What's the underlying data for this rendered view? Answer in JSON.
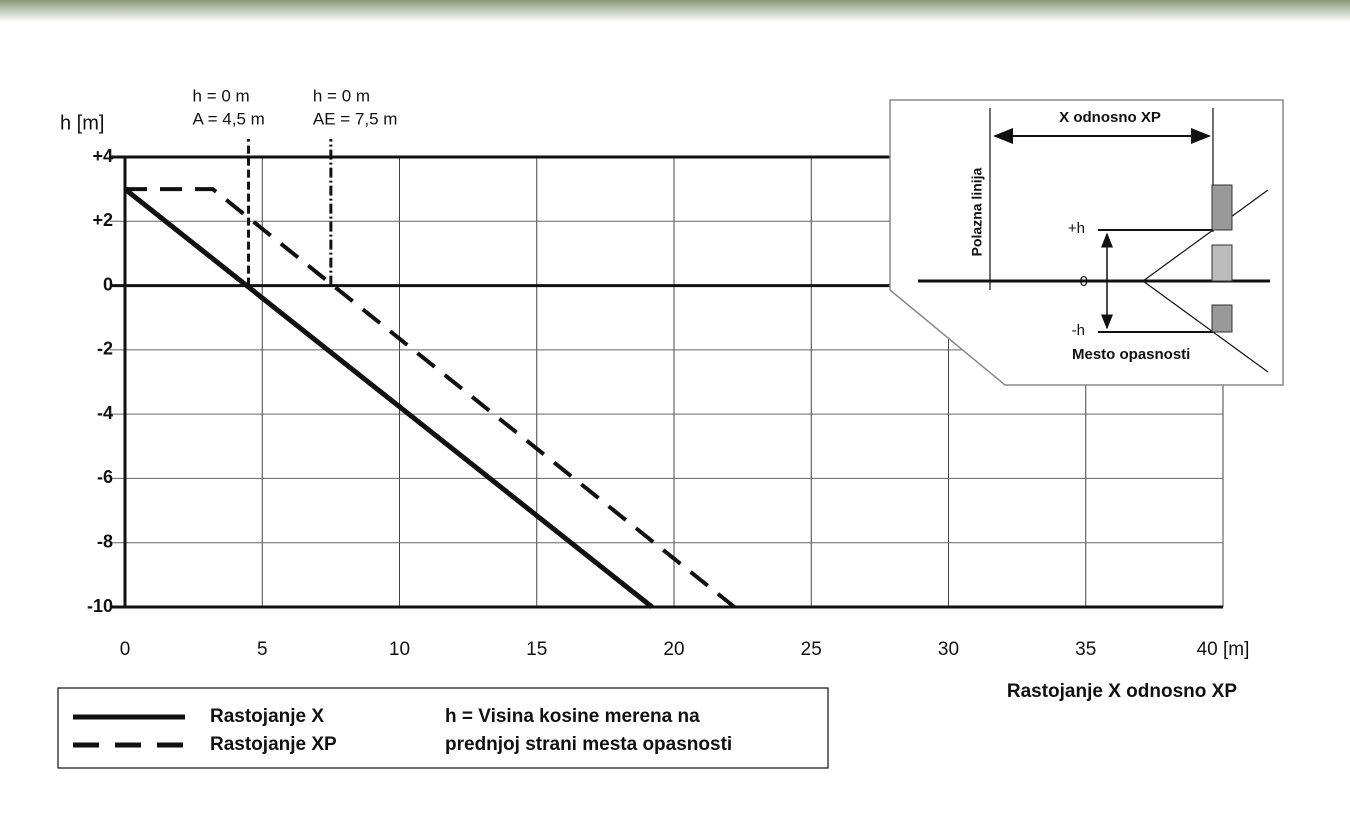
{
  "chart_data": {
    "type": "line",
    "y_label": "h [m]",
    "x_label": "Rastojanje X odnosno XP",
    "xlim": [
      0,
      40
    ],
    "ylim": [
      -10,
      4
    ],
    "xticks": [
      0,
      5,
      10,
      15,
      20,
      25,
      30,
      35,
      {
        "value": 40,
        "label": "40 [m]"
      }
    ],
    "yticks": [
      {
        "value": 4,
        "label": "+4"
      },
      {
        "value": 2,
        "label": "+2"
      },
      0,
      -2,
      -4,
      -6,
      -8,
      -10
    ],
    "grid": true,
    "series": [
      {
        "name": "Rastojanje X",
        "color": "#111111",
        "style": "solid",
        "x": [
          0,
          19.2
        ],
        "values": [
          3,
          -10
        ]
      },
      {
        "name": "Rastojanje XP",
        "color": "#111111",
        "style": "dashed",
        "x": [
          0,
          3.2,
          22.2
        ],
        "values": [
          3,
          3,
          -10
        ]
      }
    ],
    "annotations": [
      {
        "lines": [
          "h = 0 m",
          "A = 4,5 m"
        ],
        "x": 4.5,
        "y": [
          0,
          4
        ],
        "style": "dashed"
      },
      {
        "lines": [
          "h = 0 m",
          "AE = 7,5 m"
        ],
        "x": 7.5,
        "y": [
          0,
          4
        ],
        "style": "dashdot"
      }
    ],
    "note": [
      "h = Visina kosine merena na",
      "prednjoj strani mesta opasnosti"
    ],
    "inset": {
      "distance": "X odnosno XP",
      "start_line": "Polazna linija",
      "plus_h": "+h",
      "zero": "0",
      "minus_h": "-h",
      "danger": "Mesto opasnosti"
    }
  }
}
